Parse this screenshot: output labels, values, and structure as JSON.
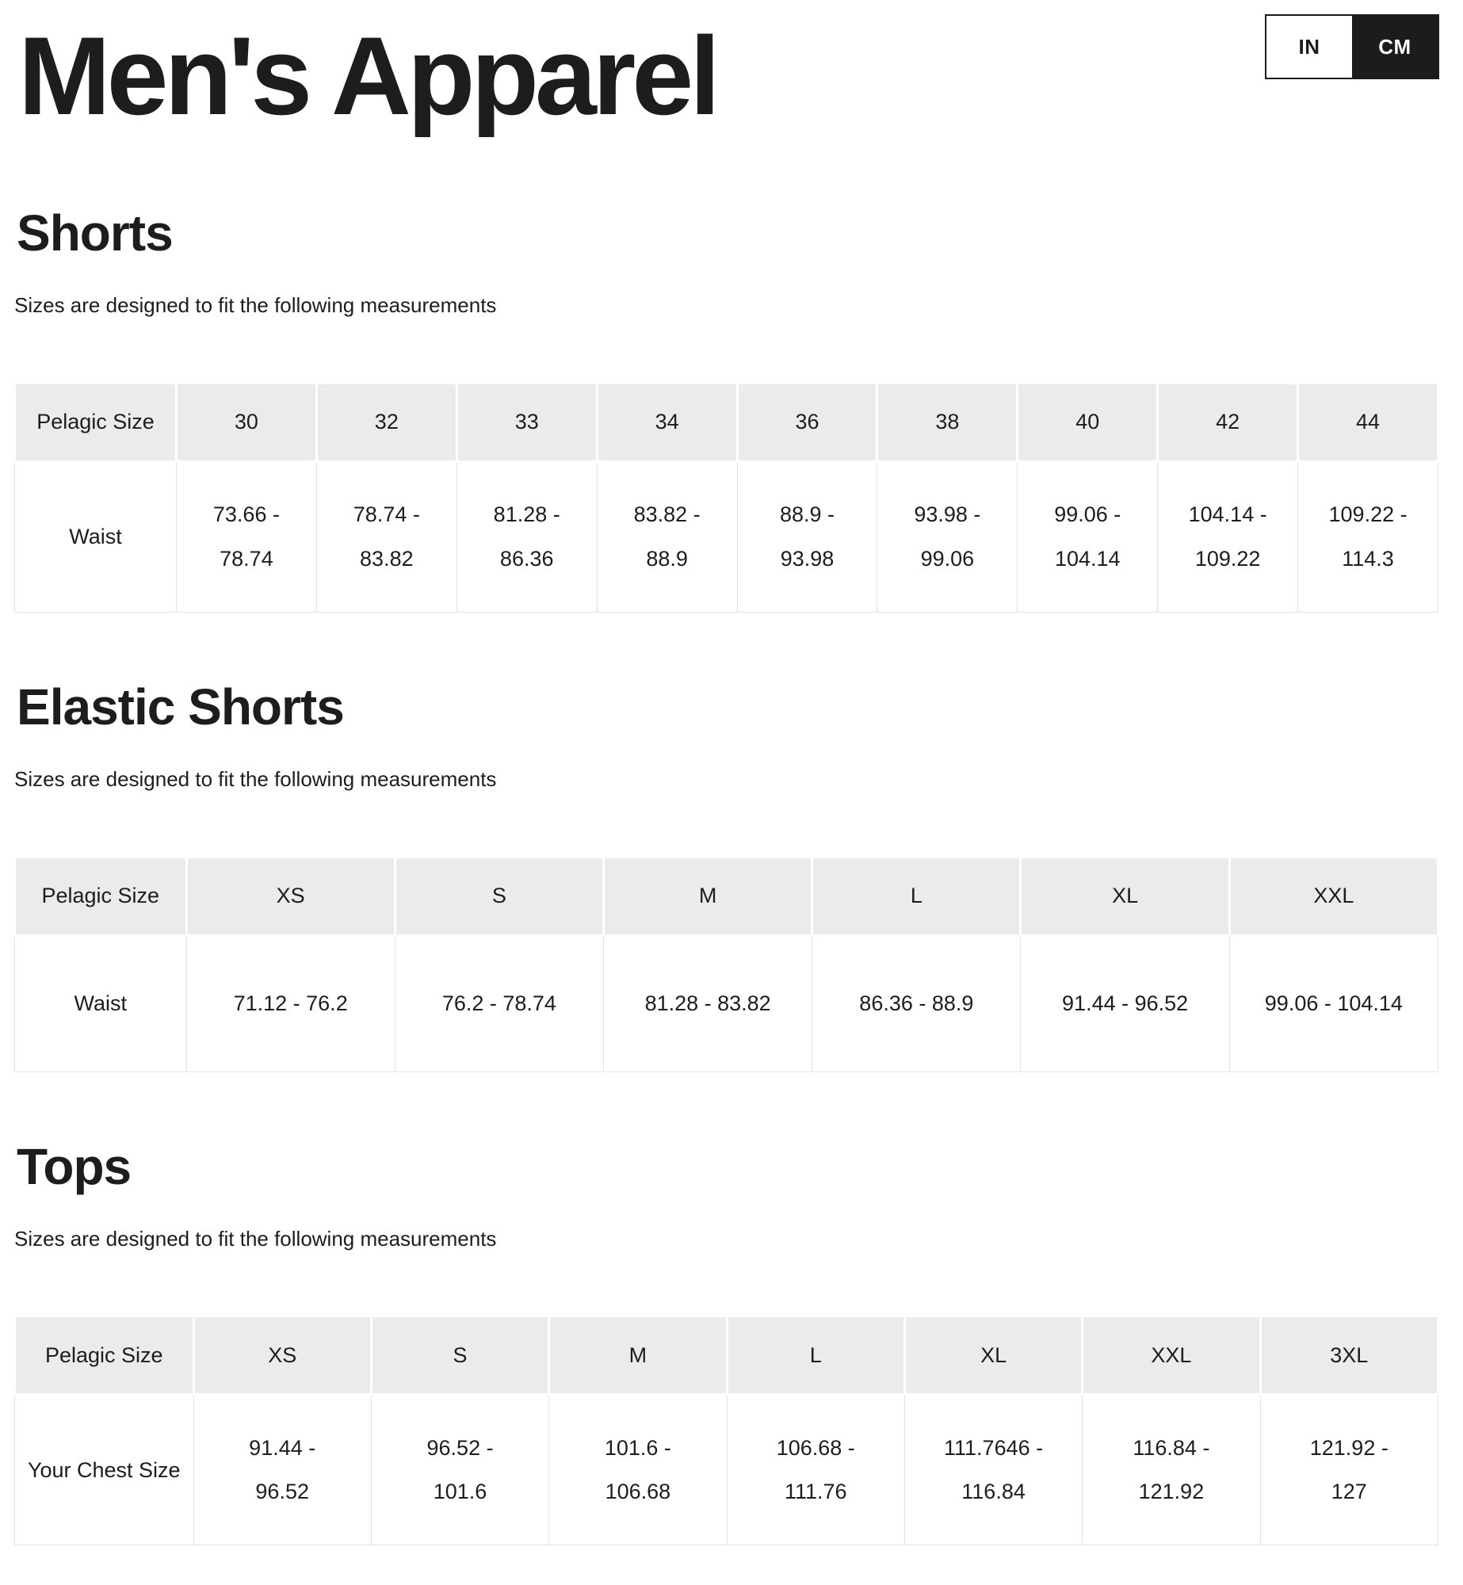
{
  "header": {
    "title": "Men's Apparel",
    "unit_toggle": {
      "options": [
        {
          "label": "IN",
          "selected": false
        },
        {
          "label": "CM",
          "selected": true
        }
      ]
    }
  },
  "colors": {
    "text": "#1d1d1d",
    "table_header_bg": "#ebebeb",
    "table_border": "#e3e3e3",
    "toggle_active_bg": "#1c1c1c",
    "toggle_active_text": "#ffffff"
  },
  "sections": [
    {
      "id": "shorts",
      "heading": "Shorts",
      "subtitle": "Sizes are designed to fit the following measurements",
      "table": {
        "columns": [
          "Pelagic Size",
          "30",
          "32",
          "33",
          "34",
          "36",
          "38",
          "40",
          "42",
          "44"
        ],
        "rows": [
          {
            "label": "Waist",
            "values": [
              "73.66 - 78.74",
              "78.74 - 83.82",
              "81.28 - 86.36",
              "83.82 - 88.9",
              "88.9 - 93.98",
              "93.98 - 99.06",
              "99.06 - 104.14",
              "104.14 - 109.22",
              "109.22 - 114.3"
            ]
          }
        ]
      }
    },
    {
      "id": "elastic-shorts",
      "heading": "Elastic Shorts",
      "subtitle": "Sizes are designed to fit the following measurements",
      "table": {
        "columns": [
          "Pelagic Size",
          "XS",
          "S",
          "M",
          "L",
          "XL",
          "XXL"
        ],
        "rows": [
          {
            "label": "Waist",
            "values": [
              "71.12 - 76.2",
              "76.2 - 78.74",
              "81.28 - 83.82",
              "86.36 - 88.9",
              "91.44 - 96.52",
              "99.06 - 104.14"
            ]
          }
        ]
      }
    },
    {
      "id": "tops",
      "heading": "Tops",
      "subtitle": "Sizes are designed to fit the following measurements",
      "table": {
        "columns": [
          "Pelagic Size",
          "XS",
          "S",
          "M",
          "L",
          "XL",
          "XXL",
          "3XL"
        ],
        "rows": [
          {
            "label": "Your Chest Size",
            "values": [
              "91.44 - 96.52",
              "96.52 - 101.6",
              "101.6 - 106.68",
              "106.68 - 111.76",
              "111.7646 - 116.84",
              "116.84 - 121.92",
              "121.92 - 127"
            ]
          }
        ]
      }
    }
  ]
}
